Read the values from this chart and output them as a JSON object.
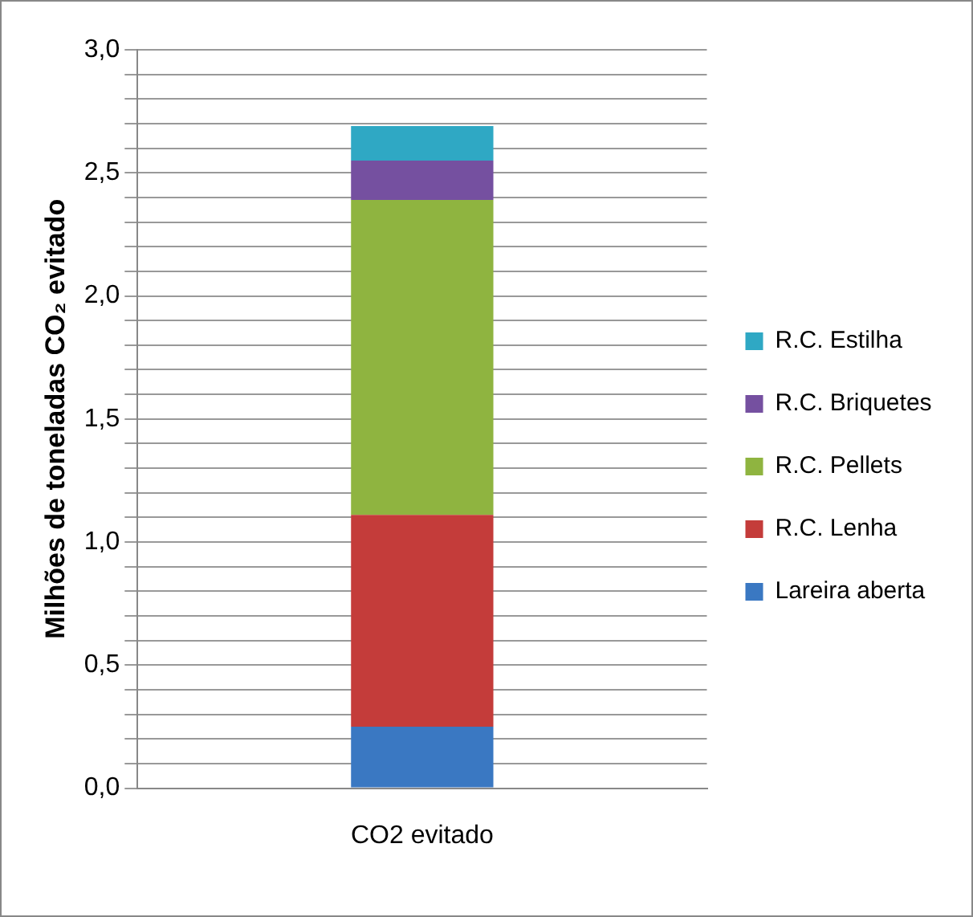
{
  "chart_data": {
    "type": "bar",
    "stacked": true,
    "ylabel": "Milhões de toneladas CO₂ evitado",
    "categories": [
      "CO2 evitado"
    ],
    "series": [
      {
        "name": "Lareira aberta",
        "color": "#3a78c2",
        "values": [
          0.25
        ]
      },
      {
        "name": "R.C. Lenha",
        "color": "#c43c3a",
        "values": [
          0.86
        ]
      },
      {
        "name": "R.C. Pellets",
        "color": "#8fb440",
        "values": [
          1.28
        ]
      },
      {
        "name": "R.C. Briquetes",
        "color": "#7550a0",
        "values": [
          0.16
        ]
      },
      {
        "name": "R.C. Estilha",
        "color": "#2fa8c4",
        "values": [
          0.14
        ]
      }
    ],
    "ylim": [
      0,
      3
    ],
    "yticks": [
      {
        "value": 0,
        "label": "0,0"
      },
      {
        "value": 0.1,
        "label": null
      },
      {
        "value": 0.2,
        "label": null
      },
      {
        "value": 0.3,
        "label": null
      },
      {
        "value": 0.4,
        "label": null
      },
      {
        "value": 0.5,
        "label": "0,5"
      },
      {
        "value": 0.6,
        "label": null
      },
      {
        "value": 0.7,
        "label": null
      },
      {
        "value": 0.8,
        "label": null
      },
      {
        "value": 0.9,
        "label": null
      },
      {
        "value": 1,
        "label": "1,0"
      },
      {
        "value": 1.1,
        "label": null
      },
      {
        "value": 1.2,
        "label": null
      },
      {
        "value": 1.3,
        "label": null
      },
      {
        "value": 1.4,
        "label": null
      },
      {
        "value": 1.5,
        "label": "1,5"
      },
      {
        "value": 1.6,
        "label": null
      },
      {
        "value": 1.7,
        "label": null
      },
      {
        "value": 1.8,
        "label": null
      },
      {
        "value": 1.9,
        "label": null
      },
      {
        "value": 2,
        "label": "2,0"
      },
      {
        "value": 2.1,
        "label": null
      },
      {
        "value": 2.2,
        "label": null
      },
      {
        "value": 2.3,
        "label": null
      },
      {
        "value": 2.4,
        "label": null
      },
      {
        "value": 2.5,
        "label": "2,5"
      },
      {
        "value": 2.6,
        "label": null
      },
      {
        "value": 2.7,
        "label": null
      },
      {
        "value": 2.8,
        "label": null
      },
      {
        "value": 2.9,
        "label": null
      },
      {
        "value": 3,
        "label": "3,0"
      }
    ],
    "grid": "y",
    "legend": "right"
  }
}
